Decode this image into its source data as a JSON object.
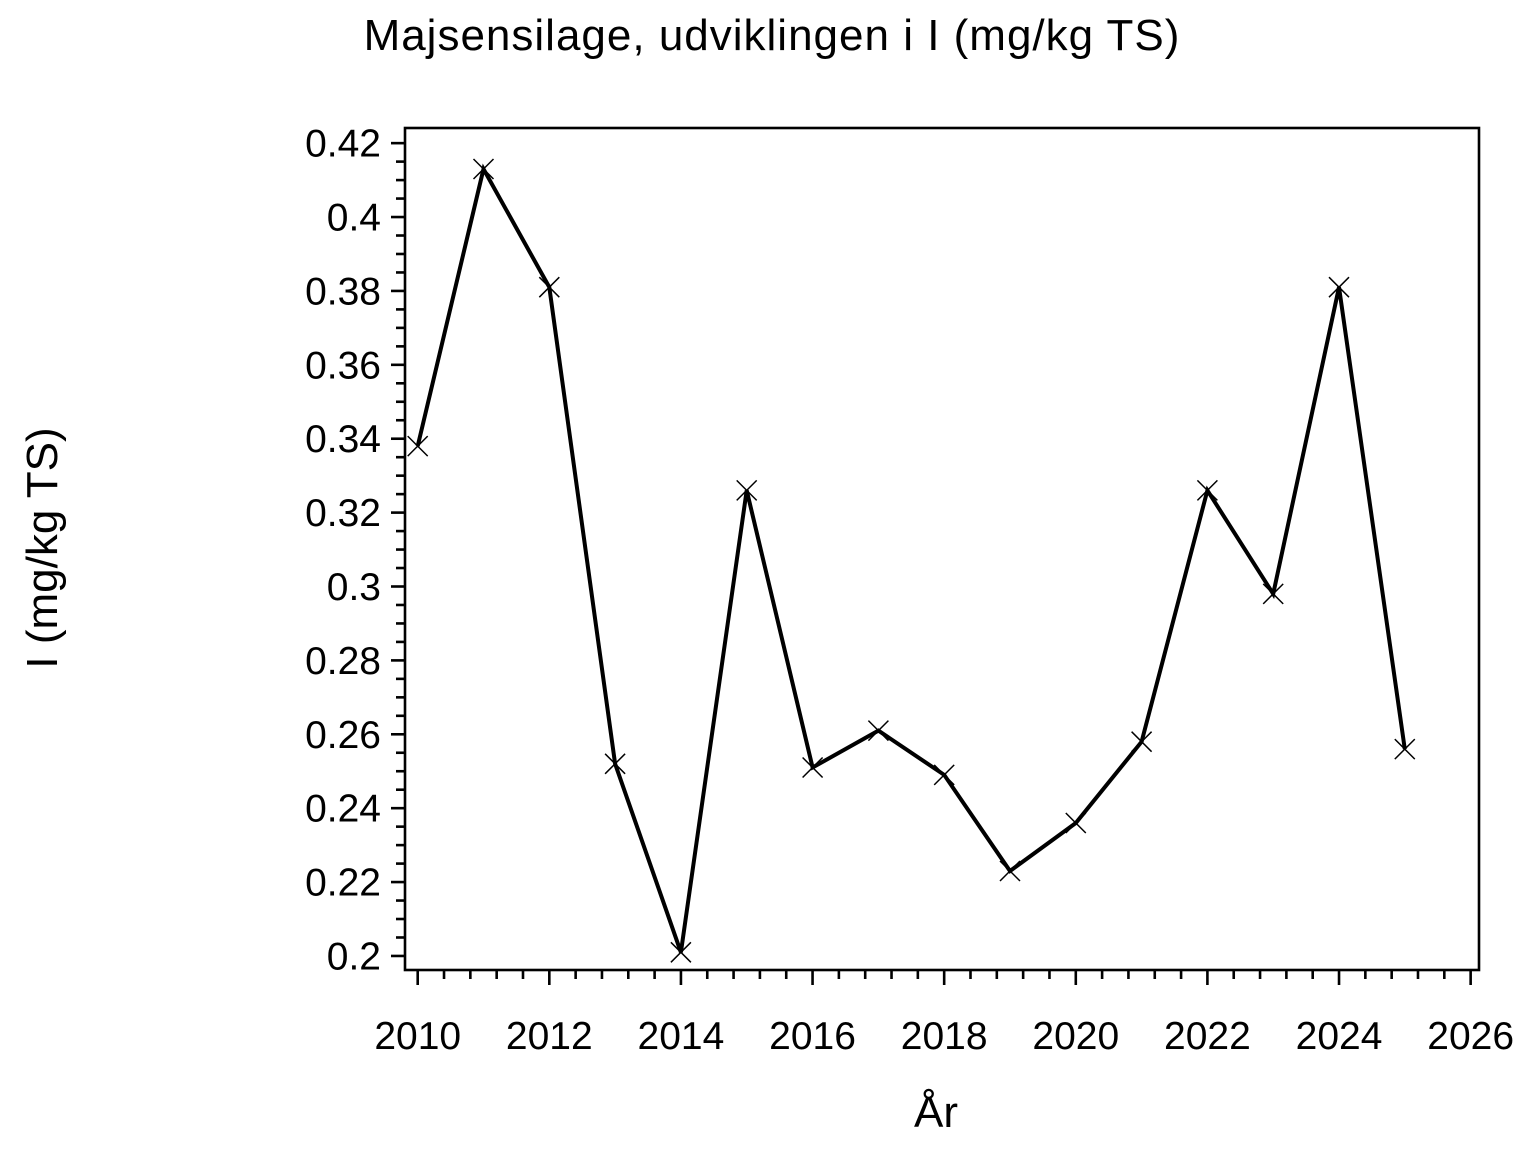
{
  "chart_data": {
    "type": "line",
    "title": "Majsensilage, udviklingen i I (mg/kg TS)",
    "xlabel": "År",
    "ylabel": "I (mg/kg TS)",
    "x": [
      2010,
      2011,
      2012,
      2013,
      2014,
      2015,
      2016,
      2017,
      2018,
      2019,
      2020,
      2021,
      2022,
      2023,
      2024,
      2025
    ],
    "y": [
      0.338,
      0.413,
      0.381,
      0.252,
      0.201,
      0.326,
      0.251,
      0.261,
      0.249,
      0.223,
      0.236,
      0.258,
      0.326,
      0.298,
      0.381,
      0.256
    ],
    "series": [
      {
        "name": "I (mg/kg TS)",
        "marker": "x",
        "color": "#000000",
        "values": [
          0.338,
          0.413,
          0.381,
          0.252,
          0.201,
          0.326,
          0.251,
          0.261,
          0.249,
          0.223,
          0.236,
          0.258,
          0.326,
          0.298,
          0.381,
          0.256
        ]
      }
    ],
    "xlim": [
      2009.807,
      2026.127
    ],
    "ylim": [
      0.1962,
      0.4241
    ],
    "x_major_ticks": [
      2010,
      2012,
      2014,
      2016,
      2018,
      2020,
      2022,
      2024,
      2026
    ],
    "x_major_tick_labels": [
      "2010",
      "2012",
      "2014",
      "2016",
      "2018",
      "2020",
      "2022",
      "2024",
      "2026"
    ],
    "x_minor_step": 0.4,
    "y_major_ticks": [
      0.2,
      0.22,
      0.24,
      0.26,
      0.28,
      0.3,
      0.32,
      0.34,
      0.36,
      0.38,
      0.4,
      0.42
    ],
    "y_major_tick_labels": [
      "0.2",
      "0.22",
      "0.24",
      "0.26",
      "0.28",
      "0.3",
      "0.32",
      "0.34",
      "0.36",
      "0.38",
      "0.4",
      "0.42"
    ],
    "y_minor_step": 0.005,
    "grid": false,
    "legend": "none",
    "frame": true,
    "background_color": "#ffffff",
    "line_color": "#000000"
  }
}
